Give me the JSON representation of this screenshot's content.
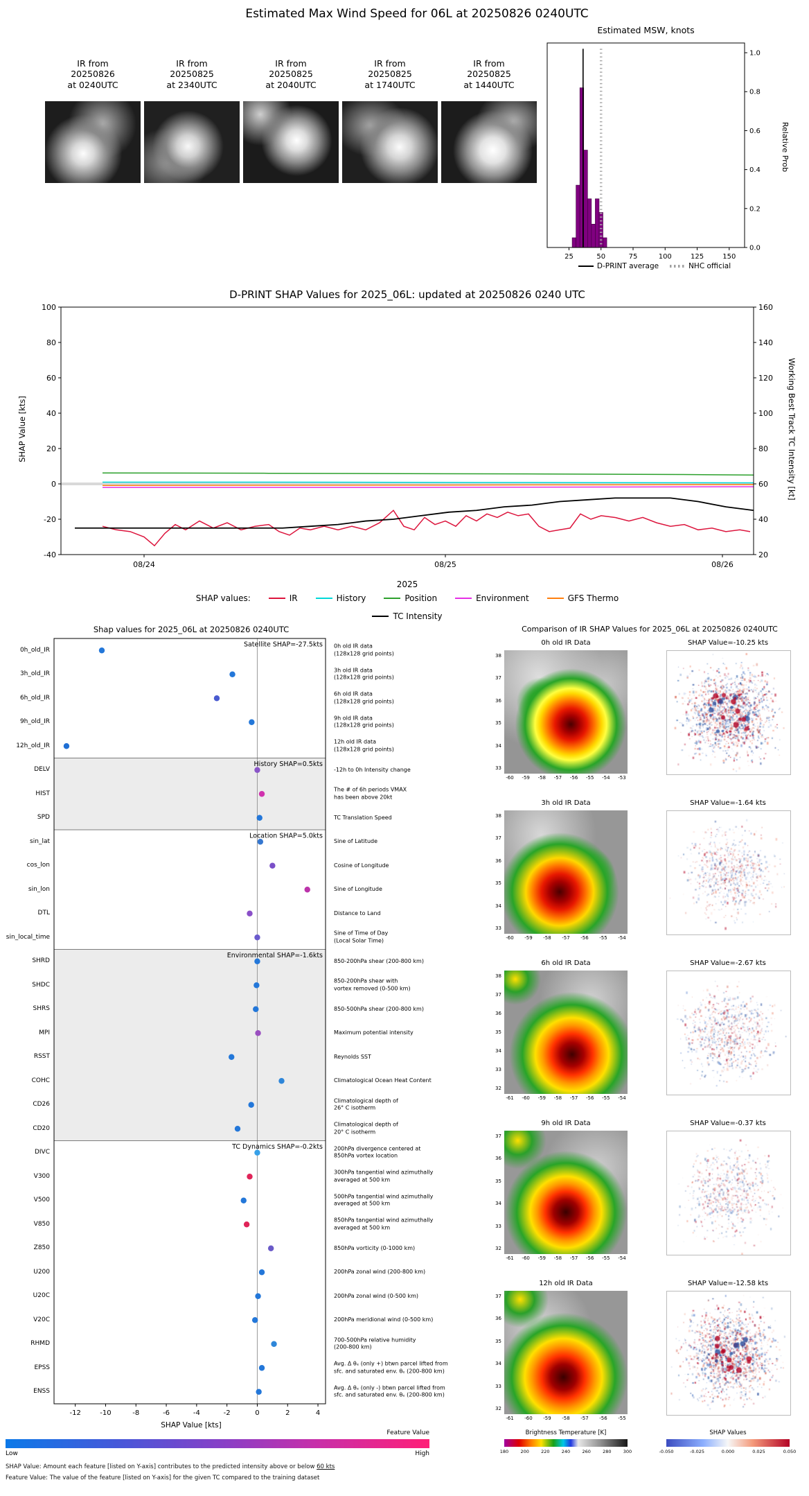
{
  "page_title": "Estimated Max Wind Speed for 06L at 20250826 0240UTC",
  "ir_thumbnails": [
    {
      "label": [
        "IR from",
        "20250826",
        "at 0240UTC"
      ]
    },
    {
      "label": [
        "IR from",
        "20250825",
        "at 2340UTC"
      ]
    },
    {
      "label": [
        "IR from",
        "20250825",
        "at 2040UTC"
      ]
    },
    {
      "label": [
        "IR from",
        "20250825",
        "at 1740UTC"
      ]
    },
    {
      "label": [
        "IR from",
        "20250825",
        "at 1440UTC"
      ]
    }
  ],
  "comparison_panel": {
    "title": "Comparison of IR SHAP Values for 2025_06L at 20250826 0240UTC",
    "rows": [
      {
        "ir_title": "0h old IR Data",
        "shap_title": "SHAP Value=-10.25 kts",
        "lat_ticks": [
          "38",
          "37",
          "36",
          "35",
          "34",
          "33"
        ],
        "lon_ticks": [
          "-60",
          "-59",
          "-58",
          "-57",
          "-56",
          "-55",
          "-54",
          "-53"
        ],
        "speckle": 1.0
      },
      {
        "ir_title": "3h old IR Data",
        "shap_title": "SHAP Value=-1.64 kts",
        "lat_ticks": [
          "38",
          "37",
          "36",
          "35",
          "34",
          "33"
        ],
        "lon_ticks": [
          "-60",
          "-59",
          "-58",
          "-57",
          "-56",
          "-55",
          "-54"
        ],
        "speckle": 0.35
      },
      {
        "ir_title": "6h old IR Data",
        "shap_title": "SHAP Value=-2.67 kts",
        "lat_ticks": [
          "38",
          "37",
          "36",
          "35",
          "34",
          "33",
          "32"
        ],
        "lon_ticks": [
          "-61",
          "-60",
          "-59",
          "-58",
          "-57",
          "-56",
          "-55",
          "-54"
        ],
        "speckle": 0.4
      },
      {
        "ir_title": "9h old IR Data",
        "shap_title": "SHAP Value=-0.37 kts",
        "lat_ticks": [
          "37",
          "36",
          "35",
          "34",
          "33",
          "32"
        ],
        "lon_ticks": [
          "-61",
          "-60",
          "-59",
          "-58",
          "-57",
          "-56",
          "-55",
          "-54"
        ],
        "speckle": 0.3
      },
      {
        "ir_title": "12h old IR Data",
        "shap_title": "SHAP Value=-12.58 kts",
        "lat_ticks": [
          "37",
          "36",
          "35",
          "34",
          "33",
          "32"
        ],
        "lon_ticks": [
          "-61",
          "-60",
          "-59",
          "-58",
          "-57",
          "-56",
          "-55"
        ],
        "speckle": 1.0
      }
    ],
    "bt_colorbar": {
      "title": "Brightness Temperature [K]",
      "ticks": [
        "180",
        "200",
        "220",
        "240",
        "260",
        "280",
        "300"
      ]
    },
    "shap_colorbar": {
      "title": "SHAP Values",
      "ticks": [
        "-0.050",
        "-0.025",
        "0.000",
        "0.025",
        "0.050"
      ]
    }
  },
  "chart_data": [
    {
      "id": "msw_histogram",
      "type": "bar",
      "title": "Estimated MSW, knots",
      "ylabel": "Relative Prob",
      "xlim": [
        8,
        162
      ],
      "ylim": [
        0,
        1.05
      ],
      "xticks": [
        25,
        50,
        75,
        100,
        125,
        150
      ],
      "yticks": [
        0.0,
        0.2,
        0.4,
        0.6,
        0.8,
        1.0
      ],
      "bin_width": 3,
      "bar_color": "#800080",
      "bins": [
        29,
        32,
        35,
        38,
        41,
        44,
        47,
        50,
        53
      ],
      "values": [
        0.05,
        0.32,
        0.82,
        0.5,
        0.25,
        0.12,
        0.25,
        0.18,
        0.05
      ],
      "dprint_average": 36,
      "nhc_official": 50,
      "legend": [
        "D-PRINT average",
        "NHC official"
      ]
    },
    {
      "id": "shap_timeseries",
      "type": "line",
      "title": "D-PRINT SHAP Values for 2025_06L: updated at 20250826 0240 UTC",
      "ylabel_left": "SHAP Value [kts]",
      "ylabel_right": "Working Best Track TC Intensity [kt]",
      "xlabel": "2025",
      "legend_prefix": "SHAP values:",
      "ylim_left": [
        -40,
        100
      ],
      "ylim_right": [
        20,
        160
      ],
      "yticks_left": [
        100,
        80,
        60,
        40,
        20,
        0,
        -20,
        -40
      ],
      "yticks_right": [
        160,
        140,
        120,
        100,
        80,
        60,
        40,
        20
      ],
      "xticks": [
        {
          "label": "08/24",
          "t": 0.12
        },
        {
          "label": "08/25",
          "t": 0.555
        },
        {
          "label": "08/26",
          "t": 0.955
        }
      ],
      "series": [
        {
          "name": "IR",
          "color": "#dc143c",
          "axis": "left",
          "t": [
            0.06,
            0.08,
            0.1,
            0.12,
            0.135,
            0.15,
            0.165,
            0.18,
            0.2,
            0.22,
            0.24,
            0.26,
            0.28,
            0.3,
            0.315,
            0.33,
            0.345,
            0.36,
            0.38,
            0.4,
            0.42,
            0.44,
            0.46,
            0.48,
            0.495,
            0.51,
            0.525,
            0.54,
            0.555,
            0.57,
            0.585,
            0.6,
            0.615,
            0.63,
            0.645,
            0.66,
            0.675,
            0.69,
            0.705,
            0.72,
            0.735,
            0.75,
            0.765,
            0.78,
            0.8,
            0.82,
            0.84,
            0.86,
            0.88,
            0.9,
            0.92,
            0.94,
            0.96,
            0.98,
            0.995
          ],
          "v": [
            -24,
            -26,
            -27,
            -30,
            -35,
            -28,
            -23,
            -26,
            -21,
            -25,
            -22,
            -26,
            -24,
            -23,
            -27,
            -29,
            -25,
            -26,
            -24,
            -26,
            -24,
            -26,
            -22,
            -15,
            -24,
            -26,
            -19,
            -23,
            -21,
            -24,
            -18,
            -21,
            -17,
            -19,
            -16,
            -18,
            -17,
            -24,
            -27,
            -26,
            -25,
            -17,
            -20,
            -18,
            -19,
            -21,
            -19,
            -22,
            -24,
            -23,
            -26,
            -25,
            -27,
            -26,
            -27
          ]
        },
        {
          "name": "History",
          "color": "#00d8d8",
          "axis": "left",
          "t": [
            0.06,
            0.3,
            0.6,
            0.8,
            1.0
          ],
          "v": [
            1.0,
            1.0,
            0.8,
            0.7,
            0.6
          ]
        },
        {
          "name": "Position",
          "color": "#2ca02c",
          "axis": "left",
          "t": [
            0.06,
            0.3,
            0.5,
            0.7,
            0.9,
            1.0
          ],
          "v": [
            6.2,
            6.0,
            5.8,
            5.6,
            5.3,
            5.0
          ]
        },
        {
          "name": "Environment",
          "color": "#e52fe5",
          "axis": "left",
          "t": [
            0.06,
            0.5,
            1.0
          ],
          "v": [
            -2.0,
            -2.0,
            -1.6
          ]
        },
        {
          "name": "GFS Thermo",
          "color": "#ff7f0e",
          "axis": "left",
          "t": [
            0.06,
            0.5,
            1.0
          ],
          "v": [
            -0.9,
            -0.7,
            -0.4
          ]
        },
        {
          "name": "TC Intensity",
          "color": "#000000",
          "axis": "right",
          "t": [
            0.02,
            0.1,
            0.18,
            0.26,
            0.32,
            0.36,
            0.4,
            0.44,
            0.48,
            0.52,
            0.56,
            0.6,
            0.64,
            0.68,
            0.72,
            0.76,
            0.8,
            0.84,
            0.88,
            0.92,
            0.96,
            1.0
          ],
          "v": [
            35,
            35,
            35,
            35,
            35,
            36,
            37,
            39,
            40,
            42,
            44,
            45,
            47,
            48,
            50,
            51,
            52,
            52,
            52,
            50,
            47,
            45
          ]
        }
      ]
    },
    {
      "id": "shap_dotplot",
      "type": "scatter",
      "title": "Shap values for 2025_06L at 20250826 0240UTC",
      "xlabel": "SHAP Value [kts]",
      "xlim": [
        -13.4,
        4.5
      ],
      "xticks": [
        -12,
        -10,
        -8,
        -6,
        -4,
        -2,
        0,
        2,
        4
      ],
      "groups": [
        {
          "label": "Satellite SHAP=-27.5kts",
          "start": 0,
          "count": 5,
          "shaded": false
        },
        {
          "label": "History SHAP=0.5kts",
          "start": 5,
          "count": 3,
          "shaded": true
        },
        {
          "label": "Location SHAP=5.0kts",
          "start": 8,
          "count": 5,
          "shaded": false
        },
        {
          "label": "Environmental SHAP=-1.6kts",
          "start": 13,
          "count": 8,
          "shaded": true
        },
        {
          "label": "TC Dynamics SHAP=-0.2kts",
          "start": 21,
          "count": 11,
          "shaded": false
        }
      ],
      "rows": [
        {
          "code": "0h_old_IR",
          "value": -10.25,
          "color": "#2377d9",
          "desc": "0h old IR data\n(128x128 grid points)"
        },
        {
          "code": "3h_old_IR",
          "value": -1.64,
          "color": "#2377d9",
          "desc": "3h old IR data\n(128x128 grid points)"
        },
        {
          "code": "6h_old_IR",
          "value": -2.67,
          "color": "#4a5bd0",
          "desc": "6h old IR data\n(128x128 grid points)"
        },
        {
          "code": "9h_old_IR",
          "value": -0.37,
          "color": "#2377d9",
          "desc": "9h old IR data\n(128x128 grid points)"
        },
        {
          "code": "12h_old_IR",
          "value": -12.58,
          "color": "#1f6fd4",
          "desc": "12h old IR data\n(128x128 grid points)"
        },
        {
          "code": "DELV",
          "value": 0.0,
          "color": "#8a55c8",
          "desc": "-12h to 0h Intensity change"
        },
        {
          "code": "HIST",
          "value": 0.3,
          "color": "#d032ae",
          "desc": "The # of 6h periods VMAX\nhas been above 20kt"
        },
        {
          "code": "SPD",
          "value": 0.15,
          "color": "#2377d9",
          "desc": "TC Translation Speed"
        },
        {
          "code": "sin_lat",
          "value": 0.2,
          "color": "#3577d0",
          "desc": "Sine of Latitude"
        },
        {
          "code": "cos_lon",
          "value": 1.0,
          "color": "#7a4fc8",
          "desc": "Cosine of Longitude"
        },
        {
          "code": "sin_lon",
          "value": 3.3,
          "color": "#bb33aa",
          "desc": "Sine of Longitude"
        },
        {
          "code": "DTL",
          "value": -0.5,
          "color": "#8a4fc8",
          "desc": "Distance to Land"
        },
        {
          "code": "sin_local_time",
          "value": 0.0,
          "color": "#6a5acd",
          "desc": "Sine of Time of Day\n(Local Solar Time)"
        },
        {
          "code": "SHRD",
          "value": 0.0,
          "color": "#2377d9",
          "desc": "850-200hPa shear (200-800 km)"
        },
        {
          "code": "SHDC",
          "value": -0.05,
          "color": "#2377d9",
          "desc": "850-200hPa shear with\nvortex removed (0-500 km)"
        },
        {
          "code": "SHRS",
          "value": -0.1,
          "color": "#2377d9",
          "desc": "850-500hPa shear (200-800 km)"
        },
        {
          "code": "MPI",
          "value": 0.05,
          "color": "#9a4fc0",
          "desc": "Maximum potential intensity"
        },
        {
          "code": "RSST",
          "value": -1.7,
          "color": "#2377d9",
          "desc": "Reynolds SST"
        },
        {
          "code": "COHC",
          "value": 1.6,
          "color": "#2e86d9",
          "desc": "Climatological Ocean Heat Content"
        },
        {
          "code": "CD26",
          "value": -0.4,
          "color": "#2377d9",
          "desc": "Climatological depth of\n26° C isotherm"
        },
        {
          "code": "CD20",
          "value": -1.3,
          "color": "#2377d9",
          "desc": "Climatological depth of\n20° C isotherm"
        },
        {
          "code": "DIVC",
          "value": 0.0,
          "color": "#37a0e8",
          "desc": "200hPa divergence centered at\n850hPa vortex location"
        },
        {
          "code": "V300",
          "value": -0.5,
          "color": "#e02458",
          "desc": "300hPa tangential wind azimuthally\naveraged at 500 km"
        },
        {
          "code": "V500",
          "value": -0.9,
          "color": "#2377d9",
          "desc": "500hPa tangential wind azimuthally\naveraged at 500 km"
        },
        {
          "code": "V850",
          "value": -0.7,
          "color": "#e02458",
          "desc": "850hPa tangential wind azimuthally\naveraged at 500 km"
        },
        {
          "code": "Z850",
          "value": 0.9,
          "color": "#6a5ac8",
          "desc": "850hPa vorticity (0-1000 km)"
        },
        {
          "code": "U200",
          "value": 0.3,
          "color": "#2377d9",
          "desc": "200hPa zonal wind (200-800 km)"
        },
        {
          "code": "U20C",
          "value": 0.05,
          "color": "#2377d9",
          "desc": "200hPa zonal wind (0-500 km)"
        },
        {
          "code": "V20C",
          "value": -0.15,
          "color": "#2377d9",
          "desc": "200hPa meridional wind (0-500 km)"
        },
        {
          "code": "RHMD",
          "value": 1.1,
          "color": "#2e86d9",
          "desc": "700-500hPa relative humidity\n(200-800 km)"
        },
        {
          "code": "EPSS",
          "value": 0.3,
          "color": "#2377d9",
          "desc": "Avg. Δ θₑ (only +) btwn parcel lifted from\nsfc. and saturated env. θₑ (200-800 km)"
        },
        {
          "code": "ENSS",
          "value": 0.1,
          "color": "#2377d9",
          "desc": "Avg. Δ θₑ (only -) btwn parcel lifted from\nsfc. and saturated env. θₑ (200-800 km)"
        }
      ],
      "colorbar": {
        "title": "Feature Value",
        "low": "Low",
        "high": "High"
      },
      "footnotes": [
        {
          "text": "SHAP Value: Amount each feature [listed on Y-axis] contributes to the predicted intensity above or below ",
          "underlined": "60 kts"
        },
        {
          "text": "Feature Value: The value of the feature [listed on Y-axis] for the given TC compared to the training dataset",
          "underlined": ""
        }
      ]
    }
  ]
}
